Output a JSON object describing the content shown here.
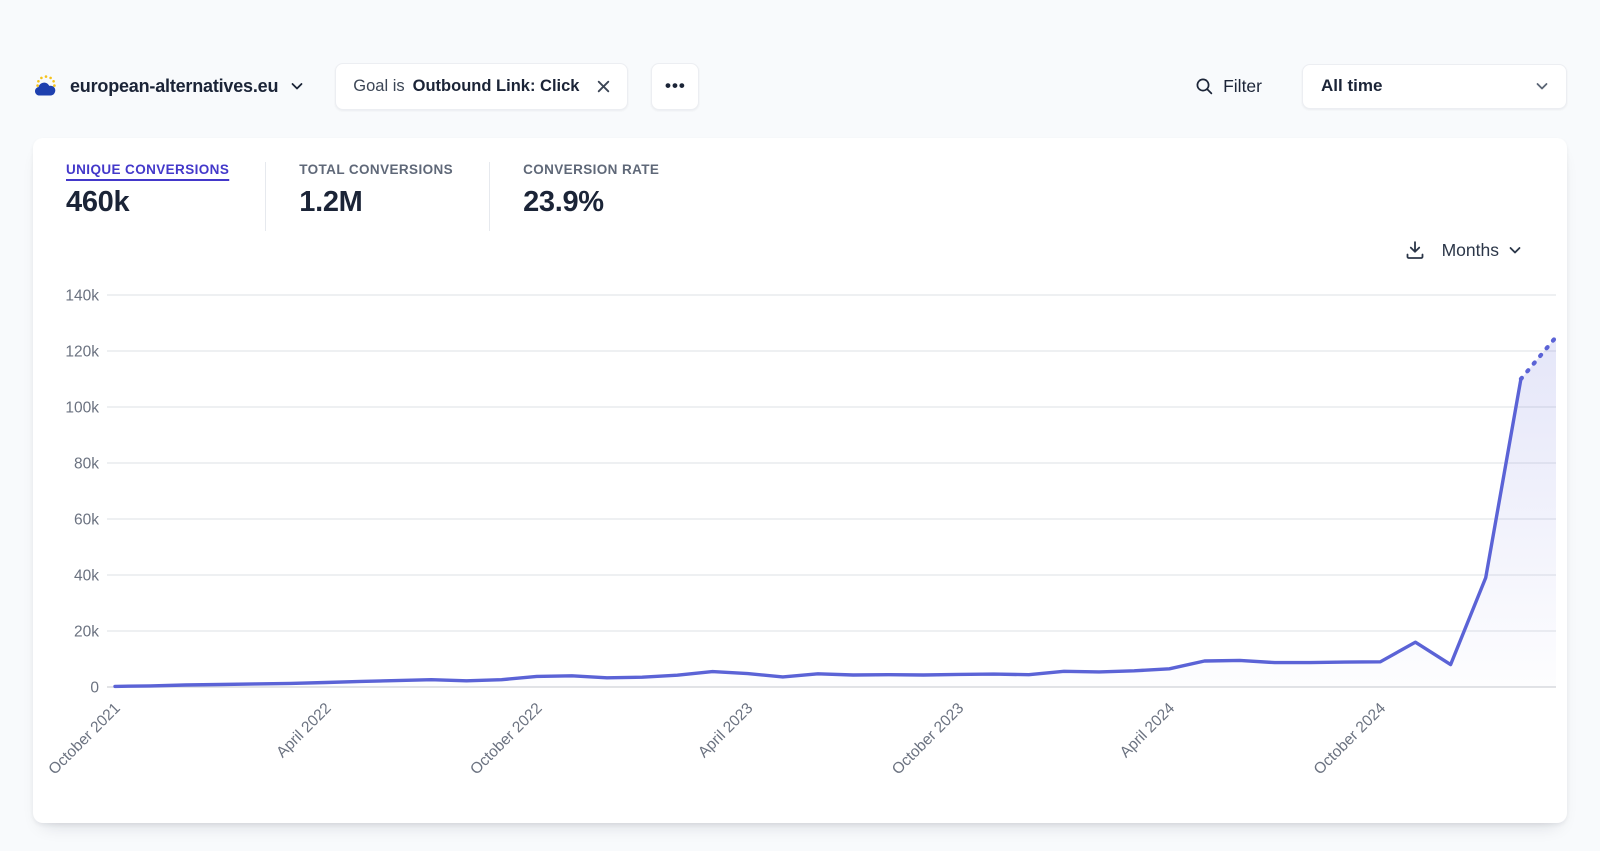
{
  "header": {
    "site": {
      "name": "european-alternatives.eu"
    },
    "filter_pill": {
      "prefix": "Goal is",
      "value": "Outbound Link: Click"
    },
    "more_label": "•••",
    "filter_button": {
      "label": "Filter"
    },
    "period_select": {
      "value": "All time"
    }
  },
  "stats": [
    {
      "label": "UNIQUE CONVERSIONS",
      "value": "460k",
      "active": true
    },
    {
      "label": "TOTAL CONVERSIONS",
      "value": "1.2M",
      "active": false
    },
    {
      "label": "CONVERSION RATE",
      "value": "23.9%",
      "active": false
    }
  ],
  "chart_controls": {
    "interval_label": "Months"
  },
  "chart_data": {
    "type": "line",
    "series_name": "Unique conversions",
    "months": [
      "Oct 2021",
      "Nov 2021",
      "Dec 2021",
      "Jan 2022",
      "Feb 2022",
      "Mar 2022",
      "Apr 2022",
      "May 2022",
      "Jun 2022",
      "Jul 2022",
      "Aug 2022",
      "Sep 2022",
      "Oct 2022",
      "Nov 2022",
      "Dec 2022",
      "Jan 2023",
      "Feb 2023",
      "Mar 2023",
      "Apr 2023",
      "May 2023",
      "Jun 2023",
      "Jul 2023",
      "Aug 2023",
      "Sep 2023",
      "Oct 2023",
      "Nov 2023",
      "Dec 2023",
      "Jan 2024",
      "Feb 2024",
      "Mar 2024",
      "Apr 2024",
      "May 2024",
      "Jun 2024",
      "Jul 2024",
      "Aug 2024",
      "Sep 2024",
      "Oct 2024",
      "Nov 2024",
      "Dec 2024",
      "Jan 2025",
      "Feb 2025",
      "Mar 2025"
    ],
    "values": [
      200,
      400,
      700,
      900,
      1100,
      1300,
      1600,
      2000,
      2300,
      2600,
      2200,
      2600,
      3800,
      4000,
      3300,
      3500,
      4200,
      5500,
      4800,
      3600,
      4700,
      4300,
      4400,
      4300,
      4500,
      4600,
      4400,
      5600,
      5400,
      5800,
      6500,
      9300,
      9500,
      8700,
      8700,
      8900,
      9000,
      16000,
      8000,
      39000,
      110000,
      125000
    ],
    "x_tick_indices": [
      0,
      6,
      12,
      18,
      24,
      30,
      36
    ],
    "x_tick_labels": [
      "October 2021",
      "April 2022",
      "October 2022",
      "April 2023",
      "October 2023",
      "April 2024",
      "October 2024"
    ],
    "y_ticks": [
      0,
      20000,
      40000,
      60000,
      80000,
      100000,
      120000,
      140000
    ],
    "y_tick_labels": [
      "0",
      "20k",
      "40k",
      "60k",
      "80k",
      "100k",
      "120k",
      "140k"
    ],
    "ylim": [
      0,
      140000
    ],
    "grid": "horizontal",
    "legend": "none",
    "last_segment_dashed": true,
    "line_color": "#5b63d6",
    "fill_top_color": "rgba(91,99,214,0.16)",
    "fill_bottom_color": "rgba(91,99,214,0.01)",
    "grid_color": "#e9ebee",
    "axis_color": "#d8dade",
    "tick_text_color": "#6b7280"
  },
  "colors": {
    "page_bg": "#f8fafc",
    "card_bg": "#ffffff",
    "accent_indigo": "#4338ca",
    "dark_text": "#1b2437",
    "favicon_blue": "#1e40af",
    "favicon_gold": "#f5c21b"
  }
}
